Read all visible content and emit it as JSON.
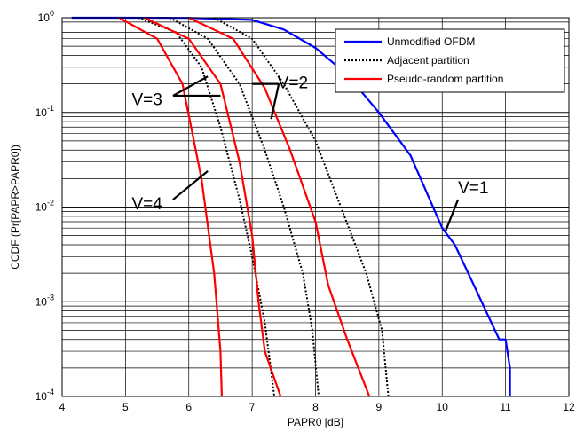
{
  "chart_data": {
    "type": "line",
    "title": "",
    "xlabel": "PAPR0 [dB]",
    "ylabel": "CCDF (Pr[PAPR>PAPR0])",
    "xlim": [
      4,
      12
    ],
    "ylim": [
      0.0001,
      1
    ],
    "yscale": "log",
    "grid": true,
    "legend_position": "top-right",
    "x_ticks": [
      "4",
      "5",
      "6",
      "7",
      "8",
      "9",
      "10",
      "11",
      "12"
    ],
    "y_tick_exponents": [
      "0",
      "-1",
      "-2",
      "-3",
      "-4"
    ],
    "y_tick_base": "10",
    "series": [
      {
        "name": "Unmodified OFDM",
        "color": "#0000ff",
        "style": "solid",
        "points": [
          [
            4.15,
            1
          ],
          [
            5.0,
            1
          ],
          [
            6.0,
            0.995
          ],
          [
            7.0,
            0.95
          ],
          [
            7.5,
            0.75
          ],
          [
            8.0,
            0.48
          ],
          [
            8.5,
            0.25
          ],
          [
            9.0,
            0.1
          ],
          [
            9.5,
            0.035
          ],
          [
            10.0,
            0.006
          ],
          [
            10.2,
            0.004
          ],
          [
            10.5,
            0.0015
          ],
          [
            10.9,
            0.0004
          ],
          [
            11.0,
            0.0004
          ],
          [
            11.07,
            0.0002
          ],
          [
            11.07,
            0.0001
          ]
        ]
      },
      {
        "name": "Adjacent partition",
        "color": "#000000",
        "style": "dotted",
        "points": [
          [
            5.2,
            1
          ],
          [
            5.8,
            0.7
          ],
          [
            6.2,
            0.3
          ],
          [
            6.5,
            0.07
          ],
          [
            6.8,
            0.012
          ],
          [
            7.0,
            0.003
          ],
          [
            7.2,
            0.0006
          ],
          [
            7.35,
            0.0001
          ]
        ]
      },
      {
        "name": "",
        "color": "#000000",
        "style": "dotted",
        "points": [
          [
            5.7,
            1
          ],
          [
            6.3,
            0.6
          ],
          [
            6.8,
            0.2
          ],
          [
            7.2,
            0.04
          ],
          [
            7.5,
            0.01
          ],
          [
            7.8,
            0.002
          ],
          [
            7.95,
            0.0005
          ],
          [
            8.05,
            0.0001
          ]
        ]
      },
      {
        "name": "",
        "color": "#000000",
        "style": "dotted",
        "points": [
          [
            6.4,
            1
          ],
          [
            7.0,
            0.6
          ],
          [
            7.5,
            0.2
          ],
          [
            8.0,
            0.05
          ],
          [
            8.4,
            0.01
          ],
          [
            8.8,
            0.002
          ],
          [
            9.05,
            0.0005
          ],
          [
            9.15,
            0.0001
          ]
        ]
      },
      {
        "name": "Pseudo-random partition",
        "color": "#ff0000",
        "style": "solid",
        "points": [
          [
            4.9,
            1
          ],
          [
            5.5,
            0.6
          ],
          [
            5.9,
            0.2
          ],
          [
            6.2,
            0.02
          ],
          [
            6.4,
            0.002
          ],
          [
            6.5,
            0.0003
          ],
          [
            6.52,
            0.0001
          ]
        ]
      },
      {
        "name": "",
        "color": "#ff0000",
        "style": "solid",
        "points": [
          [
            5.3,
            1
          ],
          [
            6.0,
            0.6
          ],
          [
            6.5,
            0.2
          ],
          [
            6.8,
            0.03
          ],
          [
            7.0,
            0.005
          ],
          [
            7.1,
            0.001
          ],
          [
            7.2,
            0.0003
          ],
          [
            7.45,
            0.0001
          ]
        ]
      },
      {
        "name": "",
        "color": "#ff0000",
        "style": "solid",
        "points": [
          [
            6.0,
            1
          ],
          [
            6.7,
            0.6
          ],
          [
            7.2,
            0.18
          ],
          [
            7.6,
            0.04
          ],
          [
            8.0,
            0.007
          ],
          [
            8.2,
            0.0015
          ],
          [
            8.5,
            0.0004
          ],
          [
            8.85,
            0.0001
          ]
        ]
      }
    ],
    "annotations": [
      {
        "text": "V=1",
        "x": 10.25,
        "y": 0.014
      },
      {
        "text": "V=2",
        "x": 7.4,
        "y": 0.18
      },
      {
        "text": "V=3",
        "x": 5.1,
        "y": 0.12
      },
      {
        "text": "V=4",
        "x": 5.1,
        "y": 0.0095
      }
    ]
  }
}
